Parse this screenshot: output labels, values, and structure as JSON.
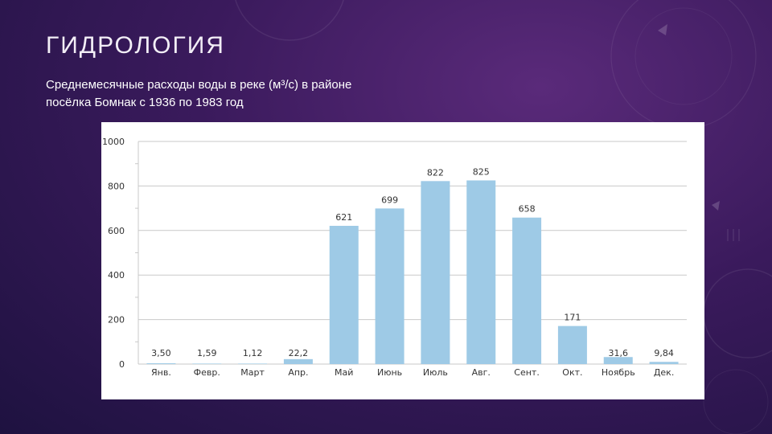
{
  "slide": {
    "title": "ГИДРОЛОГИЯ",
    "subtitle_line1": "Среднемесячные расходы воды в реке (м³/с) в районе",
    "subtitle_line2": "посёлка Бомнак с 1936 по 1983 год"
  },
  "colors": {
    "bar": "#9ecae6",
    "grid": "#c9c9c9",
    "text": "#333333"
  },
  "chart_data": {
    "type": "bar",
    "categories": [
      "Янв.",
      "Февр.",
      "Март",
      "Апр.",
      "Май",
      "Июнь",
      "Июль",
      "Авг.",
      "Сент.",
      "Окт.",
      "Ноябрь",
      "Дек."
    ],
    "values": [
      3.5,
      1.59,
      1.12,
      22.2,
      621,
      699,
      822,
      825,
      658,
      171,
      31.6,
      9.84
    ],
    "data_labels": [
      "3,50",
      "1,59",
      "1,12",
      "22,2",
      "621",
      "699",
      "822",
      "825",
      "658",
      "171",
      "31,6",
      "9,84"
    ],
    "yticks": [
      0,
      200,
      400,
      600,
      800,
      1000
    ],
    "ylim": [
      0,
      1000
    ],
    "grid": true,
    "legend": "none"
  }
}
